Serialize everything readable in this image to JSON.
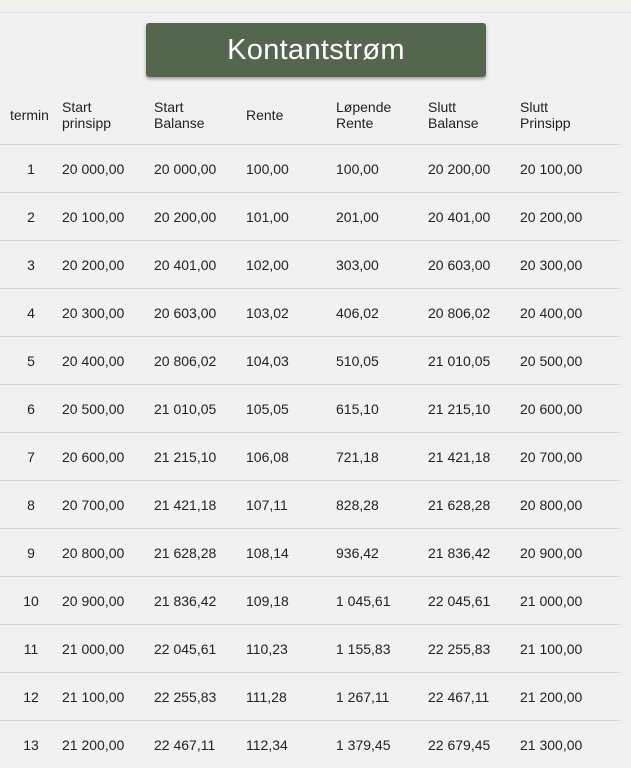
{
  "title": "Kontantstrøm",
  "columns": [
    [
      "termin"
    ],
    [
      "Start",
      "prinsipp"
    ],
    [
      "Start",
      "Balanse"
    ],
    [
      "Rente"
    ],
    [
      "Løpende",
      "Rente"
    ],
    [
      "Slutt",
      "Balanse"
    ],
    [
      "Slutt",
      "Prinsipp"
    ]
  ],
  "rows": [
    [
      "1",
      "20 000,00",
      "20 000,00",
      "100,00",
      "100,00",
      "20 200,00",
      "20 100,00"
    ],
    [
      "2",
      "20 100,00",
      "20 200,00",
      "101,00",
      "201,00",
      "20 401,00",
      "20 200,00"
    ],
    [
      "3",
      "20 200,00",
      "20 401,00",
      "102,00",
      "303,00",
      "20 603,00",
      "20 300,00"
    ],
    [
      "4",
      "20 300,00",
      "20 603,00",
      "103,02",
      "406,02",
      "20 806,02",
      "20 400,00"
    ],
    [
      "5",
      "20 400,00",
      "20 806,02",
      "104,03",
      "510,05",
      "21 010,05",
      "20 500,00"
    ],
    [
      "6",
      "20 500,00",
      "21 010,05",
      "105,05",
      "615,10",
      "21 215,10",
      "20 600,00"
    ],
    [
      "7",
      "20 600,00",
      "21 215,10",
      "106,08",
      "721,18",
      "21 421,18",
      "20 700,00"
    ],
    [
      "8",
      "20 700,00",
      "21 421,18",
      "107,11",
      "828,28",
      "21 628,28",
      "20 800,00"
    ],
    [
      "9",
      "20 800,00",
      "21 628,28",
      "108,14",
      "936,42",
      "21 836,42",
      "20 900,00"
    ],
    [
      "10",
      "20 900,00",
      "21 836,42",
      "109,18",
      "1 045,61",
      "22 045,61",
      "21 000,00"
    ],
    [
      "11",
      "21 000,00",
      "22 045,61",
      "110,23",
      "1 155,83",
      "22 255,83",
      "21 100,00"
    ],
    [
      "12",
      "21 100,00",
      "22 255,83",
      "111,28",
      "1 267,11",
      "22 467,11",
      "21 200,00"
    ],
    [
      "13",
      "21 200,00",
      "22 467,11",
      "112,34",
      "1 379,45",
      "22 679,45",
      "21 300,00"
    ]
  ],
  "colors": {
    "title_bg": "#55664f",
    "title_text": "#ffffff",
    "page_bg": "#f1f1f1",
    "row_border": "#d6d6d6"
  }
}
